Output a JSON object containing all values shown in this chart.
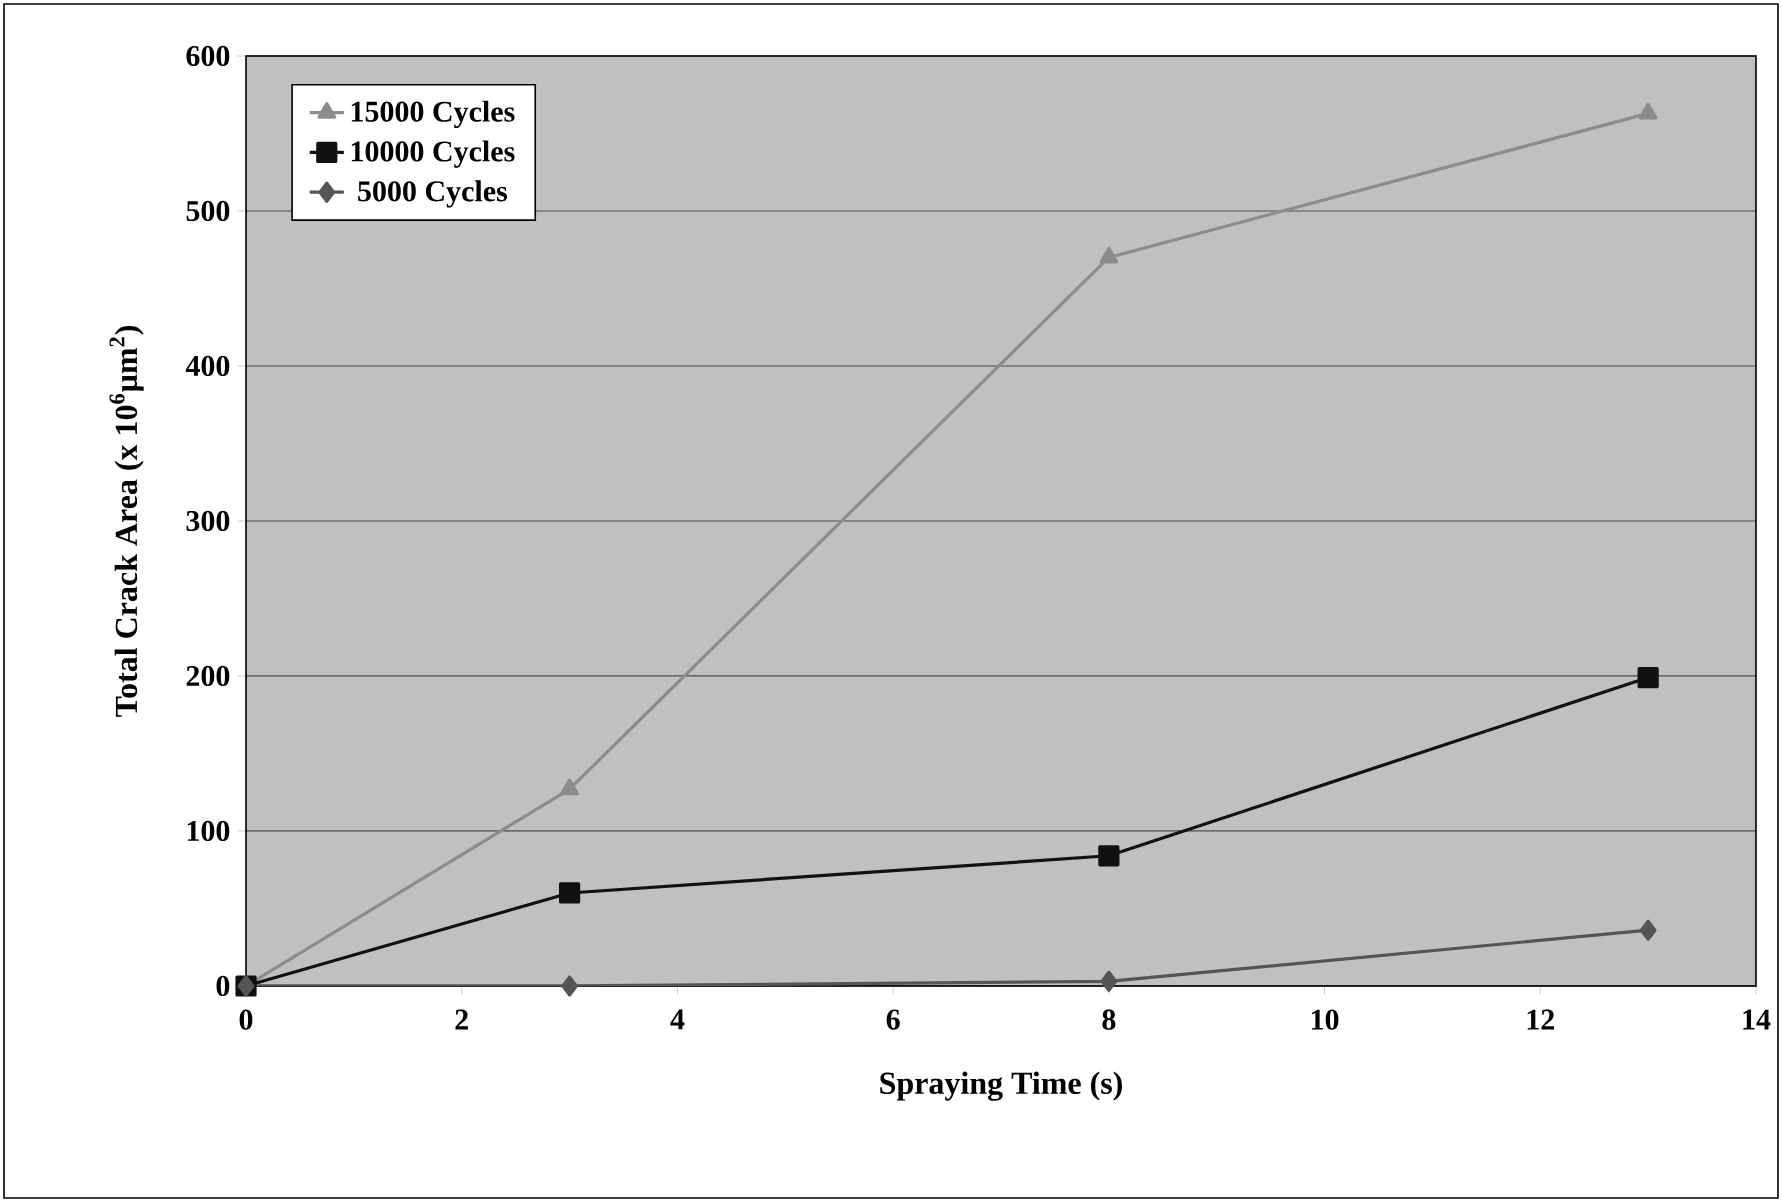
{
  "chart_data": {
    "type": "line",
    "xlabel": "Spraying Time (s)",
    "ylabel": "Total Crack Area (x 10$^{6}$μm$^{2}$)",
    "xlim": [
      0,
      14
    ],
    "xticks": [
      0,
      2,
      4,
      6,
      8,
      10,
      12,
      14
    ],
    "ylim": [
      0,
      600
    ],
    "yticks": [
      0,
      100,
      200,
      300,
      400,
      500,
      600
    ],
    "grid": "y",
    "legend": "top left",
    "series": [
      {
        "name": "15000 Cycles",
        "color": "#8c8c8c",
        "marker": "triangle",
        "x": [
          0,
          3,
          8,
          13
        ],
        "values": [
          0,
          127,
          470,
          563
        ]
      },
      {
        "name": "10000 Cycles",
        "color": "#111111",
        "marker": "square",
        "x": [
          0,
          3,
          8,
          13
        ],
        "values": [
          0,
          60,
          84,
          199
        ]
      },
      {
        "name": "5000 Cycles",
        "color": "#555555",
        "marker": "diamond",
        "x": [
          0,
          3,
          8,
          13
        ],
        "values": [
          0,
          0,
          3,
          36
        ]
      }
    ]
  }
}
